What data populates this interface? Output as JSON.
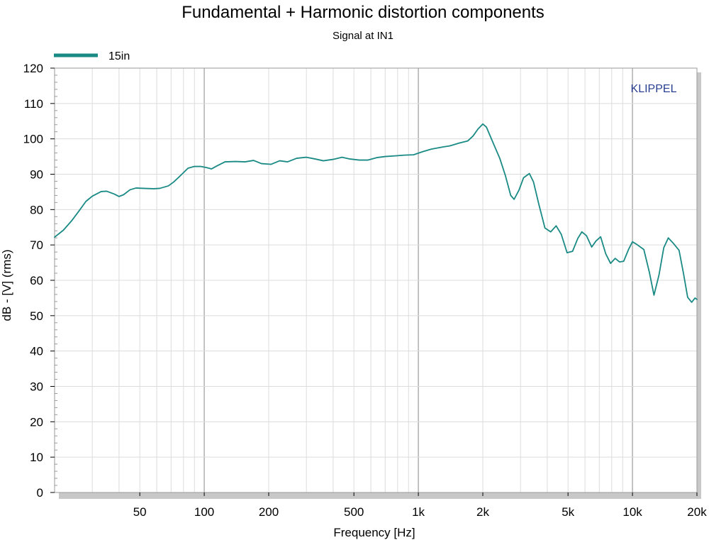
{
  "chart_data": {
    "type": "line",
    "title": "Fundamental + Harmonic distortion components",
    "subtitle": "Signal at IN1",
    "xlabel": "Frequency [Hz]",
    "ylabel": "dB - [V]  (rms)",
    "x_scale": "log",
    "xlim": [
      20,
      20000
    ],
    "ylim": [
      0,
      120
    ],
    "x_ticks": [
      {
        "value": 50,
        "label": "50"
      },
      {
        "value": 100,
        "label": "100"
      },
      {
        "value": 200,
        "label": "200"
      },
      {
        "value": 500,
        "label": "500"
      },
      {
        "value": 1000,
        "label": "1k"
      },
      {
        "value": 2000,
        "label": "2k"
      },
      {
        "value": 5000,
        "label": "5k"
      },
      {
        "value": 10000,
        "label": "10k"
      },
      {
        "value": 20000,
        "label": "20k"
      }
    ],
    "y_ticks": [
      {
        "value": 0,
        "label": "0"
      },
      {
        "value": 10,
        "label": "10"
      },
      {
        "value": 20,
        "label": "20"
      },
      {
        "value": 30,
        "label": "30"
      },
      {
        "value": 40,
        "label": "40"
      },
      {
        "value": 50,
        "label": "50"
      },
      {
        "value": 60,
        "label": "60"
      },
      {
        "value": 70,
        "label": "70"
      },
      {
        "value": 80,
        "label": "80"
      },
      {
        "value": 90,
        "label": "90"
      },
      {
        "value": 100,
        "label": "100"
      },
      {
        "value": 110,
        "label": "110"
      },
      {
        "value": 120,
        "label": "120"
      }
    ],
    "grid": true,
    "legend_position": "top-left",
    "brand_label": "KLIPPEL",
    "series": [
      {
        "name": "15in",
        "color": "#1a8a85",
        "points": [
          [
            20,
            72.2
          ],
          [
            22,
            74.2
          ],
          [
            24,
            76.8
          ],
          [
            26,
            79.6
          ],
          [
            28,
            82.3
          ],
          [
            30,
            83.8
          ],
          [
            33,
            85.1
          ],
          [
            35,
            85.2
          ],
          [
            38,
            84.4
          ],
          [
            40,
            83.7
          ],
          [
            42,
            84.2
          ],
          [
            45,
            85.6
          ],
          [
            48,
            86.1
          ],
          [
            52,
            86.0
          ],
          [
            58,
            85.9
          ],
          [
            62,
            86.0
          ],
          [
            68,
            86.7
          ],
          [
            72,
            87.8
          ],
          [
            78,
            89.8
          ],
          [
            84,
            91.7
          ],
          [
            90,
            92.2
          ],
          [
            96,
            92.2
          ],
          [
            102,
            91.9
          ],
          [
            108,
            91.5
          ],
          [
            115,
            92.4
          ],
          [
            125,
            93.5
          ],
          [
            140,
            93.6
          ],
          [
            155,
            93.5
          ],
          [
            170,
            93.9
          ],
          [
            185,
            93.0
          ],
          [
            205,
            92.8
          ],
          [
            225,
            93.8
          ],
          [
            245,
            93.5
          ],
          [
            270,
            94.5
          ],
          [
            300,
            94.8
          ],
          [
            330,
            94.3
          ],
          [
            360,
            93.8
          ],
          [
            400,
            94.2
          ],
          [
            440,
            94.8
          ],
          [
            480,
            94.3
          ],
          [
            530,
            94.0
          ],
          [
            580,
            94.0
          ],
          [
            640,
            94.7
          ],
          [
            700,
            95.0
          ],
          [
            780,
            95.2
          ],
          [
            860,
            95.4
          ],
          [
            950,
            95.5
          ],
          [
            1050,
            96.4
          ],
          [
            1150,
            97.1
          ],
          [
            1300,
            97.7
          ],
          [
            1400,
            98.0
          ],
          [
            1550,
            98.8
          ],
          [
            1700,
            99.4
          ],
          [
            1800,
            100.8
          ],
          [
            1900,
            102.8
          ],
          [
            2000,
            104.2
          ],
          [
            2080,
            103.3
          ],
          [
            2200,
            99.8
          ],
          [
            2400,
            94.5
          ],
          [
            2550,
            89.6
          ],
          [
            2700,
            84.0
          ],
          [
            2800,
            82.9
          ],
          [
            2950,
            85.5
          ],
          [
            3100,
            89.0
          ],
          [
            3300,
            90.2
          ],
          [
            3450,
            87.8
          ],
          [
            3650,
            81.6
          ],
          [
            3900,
            74.8
          ],
          [
            4150,
            73.7
          ],
          [
            4400,
            75.4
          ],
          [
            4650,
            73.0
          ],
          [
            4950,
            67.8
          ],
          [
            5250,
            68.2
          ],
          [
            5550,
            71.8
          ],
          [
            5800,
            73.7
          ],
          [
            6100,
            72.6
          ],
          [
            6450,
            69.4
          ],
          [
            6750,
            71.1
          ],
          [
            7100,
            72.3
          ],
          [
            7500,
            67.5
          ],
          [
            7900,
            64.8
          ],
          [
            8300,
            66.2
          ],
          [
            8700,
            65.2
          ],
          [
            9100,
            65.4
          ],
          [
            9600,
            68.8
          ],
          [
            10000,
            70.9
          ],
          [
            10500,
            70.1
          ],
          [
            11300,
            68.7
          ],
          [
            12000,
            62.2
          ],
          [
            12600,
            55.8
          ],
          [
            13300,
            61.5
          ],
          [
            14000,
            69.2
          ],
          [
            14700,
            72.0
          ],
          [
            15500,
            70.5
          ],
          [
            16500,
            68.5
          ],
          [
            17300,
            62.0
          ],
          [
            18100,
            55.2
          ],
          [
            18900,
            53.8
          ],
          [
            19600,
            55.0
          ],
          [
            20000,
            54.6
          ]
        ]
      }
    ]
  }
}
